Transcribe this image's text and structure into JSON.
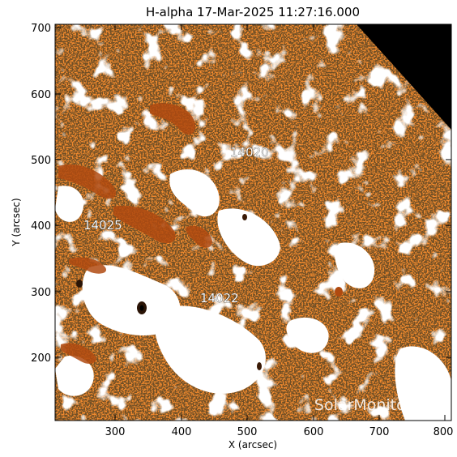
{
  "figure": {
    "title": "H-alpha 17-Mar-2025 11:27:16.000",
    "xlabel": "X (arcsec)",
    "ylabel": "Y (arcsec)",
    "x_ticks": [
      "300",
      "400",
      "500",
      "600",
      "700",
      "800"
    ],
    "y_ticks": [
      "200",
      "300",
      "400",
      "500",
      "600",
      "700"
    ],
    "active_regions": [
      {
        "id": "ar-14020",
        "label": "14020"
      },
      {
        "id": "ar-14025",
        "label": "14025"
      },
      {
        "id": "ar-14022",
        "label": "14022"
      }
    ],
    "watermark": "SolarMonitor.org",
    "colors": {
      "plage": "#f28a2e",
      "chromosphere_dark": "#2a1406",
      "bright": "#ffffff",
      "filament": "#b04a10",
      "off_disk": "#000000"
    }
  }
}
